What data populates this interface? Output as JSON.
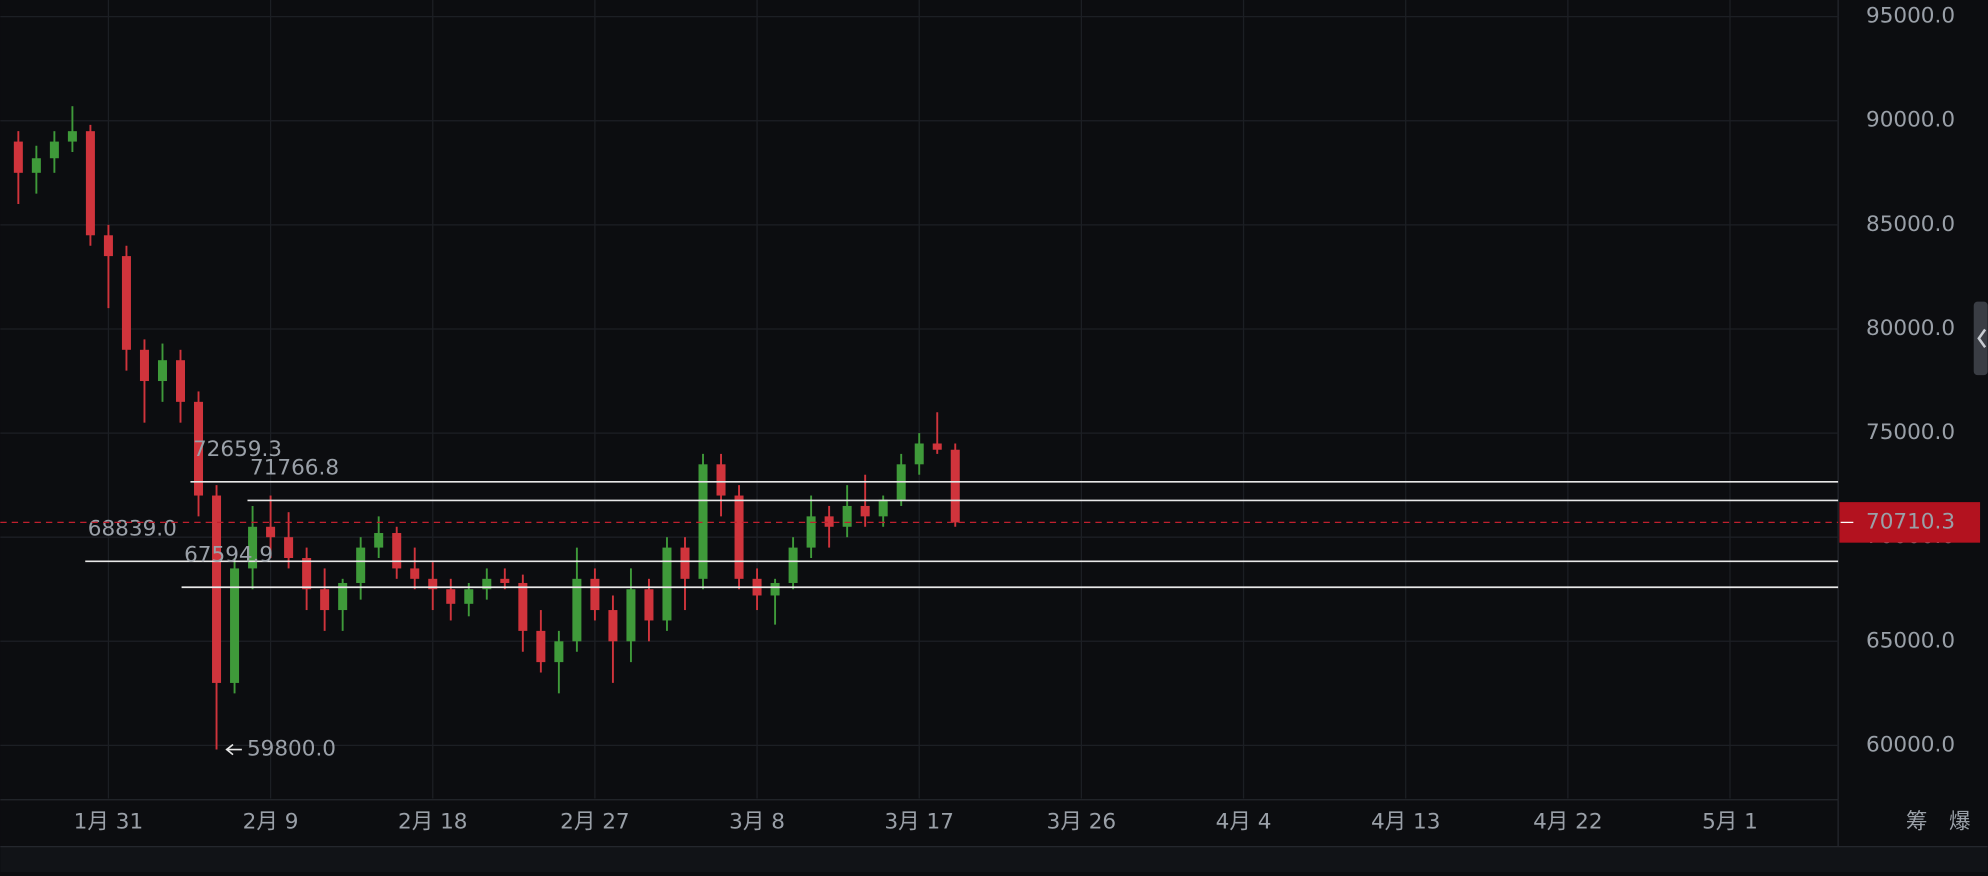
{
  "chart_data": {
    "type": "candlestick",
    "x": [
      "01-26",
      "01-27",
      "01-28",
      "01-29",
      "01-30",
      "01-31",
      "02-01",
      "02-02",
      "02-03",
      "02-04",
      "02-05",
      "02-06",
      "02-07",
      "02-08",
      "02-09",
      "02-10",
      "02-11",
      "02-12",
      "02-13",
      "02-14",
      "02-15",
      "02-16",
      "02-17",
      "02-18",
      "02-19",
      "02-20",
      "02-21",
      "02-22",
      "02-23",
      "02-24",
      "02-25",
      "02-26",
      "02-27",
      "02-28",
      "03-01",
      "03-02",
      "03-03",
      "03-04",
      "03-05",
      "03-06",
      "03-07",
      "03-08",
      "03-09",
      "03-10",
      "03-11",
      "03-12",
      "03-13",
      "03-14",
      "03-15",
      "03-16",
      "03-17",
      "03-18",
      "03-19"
    ],
    "open": [
      89000,
      87500,
      88200,
      89000,
      89500,
      84500,
      83500,
      79000,
      77500,
      78500,
      76500,
      72000,
      63000,
      68500,
      70500,
      70000,
      69000,
      67500,
      66500,
      67800,
      69500,
      70200,
      68500,
      68000,
      67500,
      66800,
      67500,
      68000,
      67800,
      65500,
      64000,
      65000,
      68000,
      66500,
      65000,
      67500,
      66000,
      69500,
      68000,
      73500,
      72000,
      68000,
      67200,
      67800,
      69500,
      71000,
      70500,
      71500,
      71000,
      71800,
      73500,
      74500,
      74200
    ],
    "high": [
      89500,
      88800,
      89500,
      90700,
      89800,
      85000,
      84000,
      79500,
      79300,
      79000,
      77000,
      72500,
      69000,
      71500,
      72000,
      71200,
      69500,
      68500,
      68000,
      70000,
      71000,
      70500,
      69500,
      68800,
      68000,
      67800,
      68500,
      68500,
      68200,
      66500,
      65500,
      69500,
      68500,
      67200,
      68500,
      68000,
      70000,
      70000,
      74000,
      74000,
      72500,
      68500,
      68000,
      70000,
      72000,
      71500,
      72500,
      73000,
      72000,
      74000,
      75000,
      76000,
      74500
    ],
    "low": [
      86000,
      86500,
      87500,
      88500,
      84000,
      81000,
      78000,
      75500,
      76500,
      75500,
      71000,
      59800,
      62500,
      67500,
      69000,
      68500,
      66500,
      65500,
      65500,
      67000,
      69000,
      68000,
      67500,
      66500,
      66000,
      66200,
      67000,
      67500,
      64500,
      63500,
      62500,
      64500,
      66000,
      63000,
      64000,
      65000,
      65500,
      66500,
      67500,
      71000,
      67500,
      66500,
      65800,
      67500,
      69000,
      69500,
      70000,
      70500,
      70500,
      71500,
      73000,
      74000,
      70500
    ],
    "close": [
      87500,
      88200,
      89000,
      89500,
      84500,
      83500,
      79000,
      77500,
      78500,
      76500,
      72000,
      63000,
      68500,
      70500,
      70000,
      69000,
      67500,
      66500,
      67800,
      69500,
      70200,
      68500,
      68000,
      67500,
      66800,
      67500,
      68000,
      67800,
      65500,
      64000,
      65000,
      68000,
      66500,
      65000,
      67500,
      66000,
      69500,
      68000,
      73500,
      72000,
      68000,
      67200,
      67800,
      69500,
      71000,
      70500,
      71500,
      71000,
      71800,
      73500,
      74500,
      74200,
      70710.3
    ],
    "up_color": "#3f9a3a",
    "down_color": "#d0343c",
    "xlim": [
      "01-25",
      "05-07"
    ],
    "xticks": [
      {
        "value": "01-31",
        "label": "1月 31"
      },
      {
        "value": "02-09",
        "label": "2月 9"
      },
      {
        "value": "02-18",
        "label": "2月 18"
      },
      {
        "value": "02-27",
        "label": "2月 27"
      },
      {
        "value": "03-08",
        "label": "3月 8"
      },
      {
        "value": "03-17",
        "label": "3月 17"
      },
      {
        "value": "03-26",
        "label": "3月 26"
      },
      {
        "value": "04-04",
        "label": "4月 4"
      },
      {
        "value": "04-13",
        "label": "4月 13"
      },
      {
        "value": "04-22",
        "label": "4月 22"
      },
      {
        "value": "05-01",
        "label": "5月 1"
      }
    ],
    "ylim": [
      57450,
      95800
    ],
    "yticks": [
      {
        "value": 60000,
        "label": "60000.0"
      },
      {
        "value": 65000,
        "label": "65000.0"
      },
      {
        "value": 70000,
        "label": "70000.0"
      },
      {
        "value": 75000,
        "label": "75000.0"
      },
      {
        "value": 80000,
        "label": "80000.0"
      },
      {
        "value": 85000,
        "label": "85000.0"
      },
      {
        "value": 90000,
        "label": "90000.0"
      },
      {
        "value": 95000,
        "label": "95000.0"
      }
    ],
    "grid": true,
    "levels": [
      {
        "value": 72659.3,
        "label": "72659.3"
      },
      {
        "value": 71766.8,
        "label": "71766.8"
      },
      {
        "value": 68839.0,
        "label": "68839.0"
      },
      {
        "value": 67594.9,
        "label": "67594.9"
      }
    ],
    "last_price": 70710.3,
    "low_label": {
      "value": 59800,
      "label": "59800.0"
    },
    "side_buttons": [
      "筹",
      "爆"
    ]
  }
}
